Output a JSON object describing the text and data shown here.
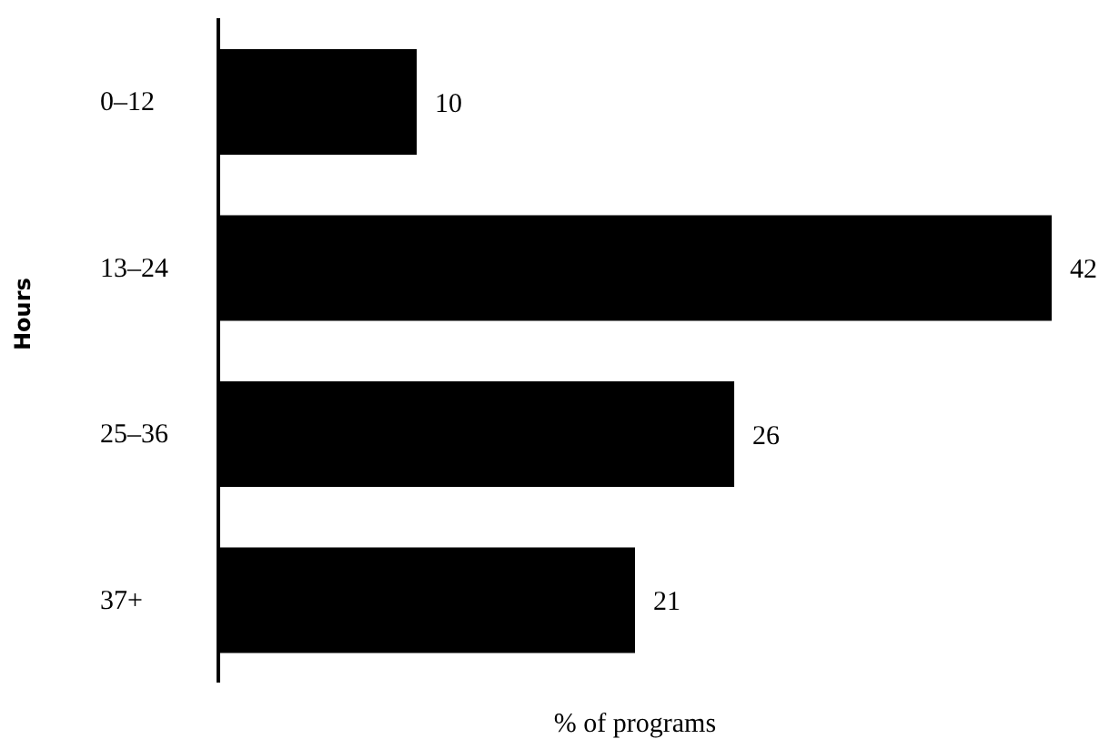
{
  "chart_data": {
    "type": "bar",
    "orientation": "horizontal",
    "xlabel": "% of programs",
    "ylabel": "Hours",
    "categories": [
      "0–12",
      "13–24",
      "25–36",
      "37+"
    ],
    "values": [
      10,
      42,
      26,
      21
    ],
    "color": "#000000",
    "data_labels": true,
    "grid": false,
    "legend": false
  }
}
